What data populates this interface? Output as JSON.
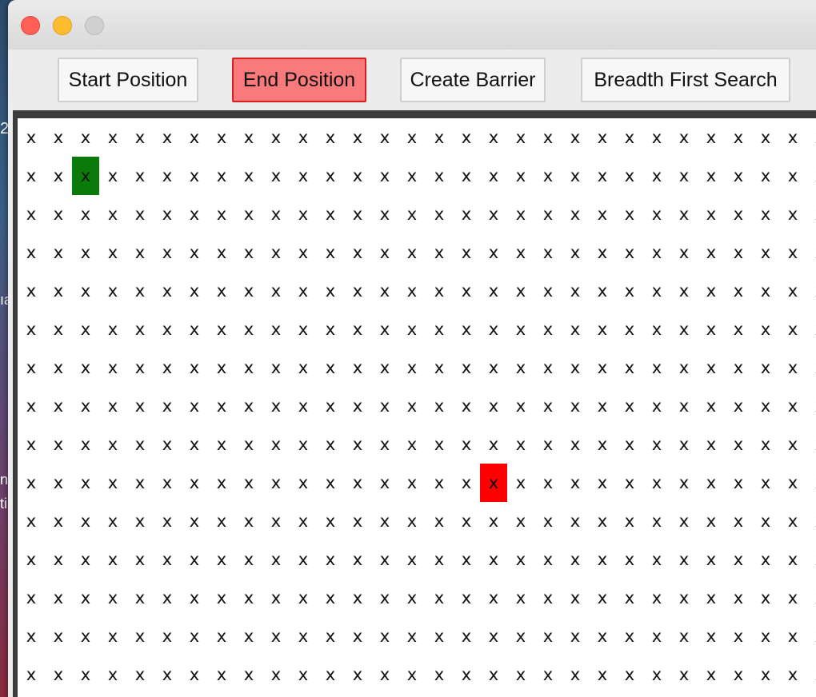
{
  "toolbar": {
    "buttons": [
      {
        "label": "Start Position",
        "active": false
      },
      {
        "label": "End Position",
        "active": true
      },
      {
        "label": "Create Barrier",
        "active": false
      },
      {
        "label": "Breadth First Search",
        "active": false
      }
    ]
  },
  "grid": {
    "rows": 15,
    "cols": 30,
    "cell_symbol": "x",
    "start": {
      "row": 1,
      "col": 2
    },
    "end": {
      "row": 9,
      "col": 17
    }
  },
  "colors": {
    "start_cell": "#0a7a0a",
    "end_cell": "#ff0000",
    "active_button": "#f87a7a",
    "active_button_border": "#d81f1f"
  }
}
